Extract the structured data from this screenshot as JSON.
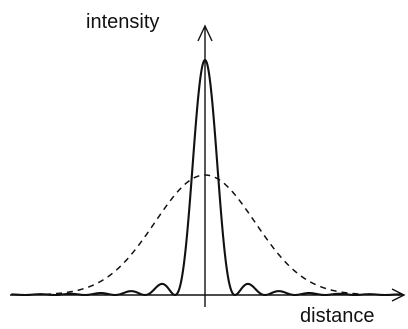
{
  "labels": {
    "y_axis": "intensity",
    "x_axis": "distance"
  },
  "colors": {
    "ink": "#111111",
    "background": "#ffffff"
  },
  "curves": [
    {
      "style": "solid",
      "shape": "sinc-squared diffraction pattern with central peak and small side lobes"
    },
    {
      "style": "dashed",
      "shape": "broad gaussian-like profile with lower peak"
    }
  ]
}
